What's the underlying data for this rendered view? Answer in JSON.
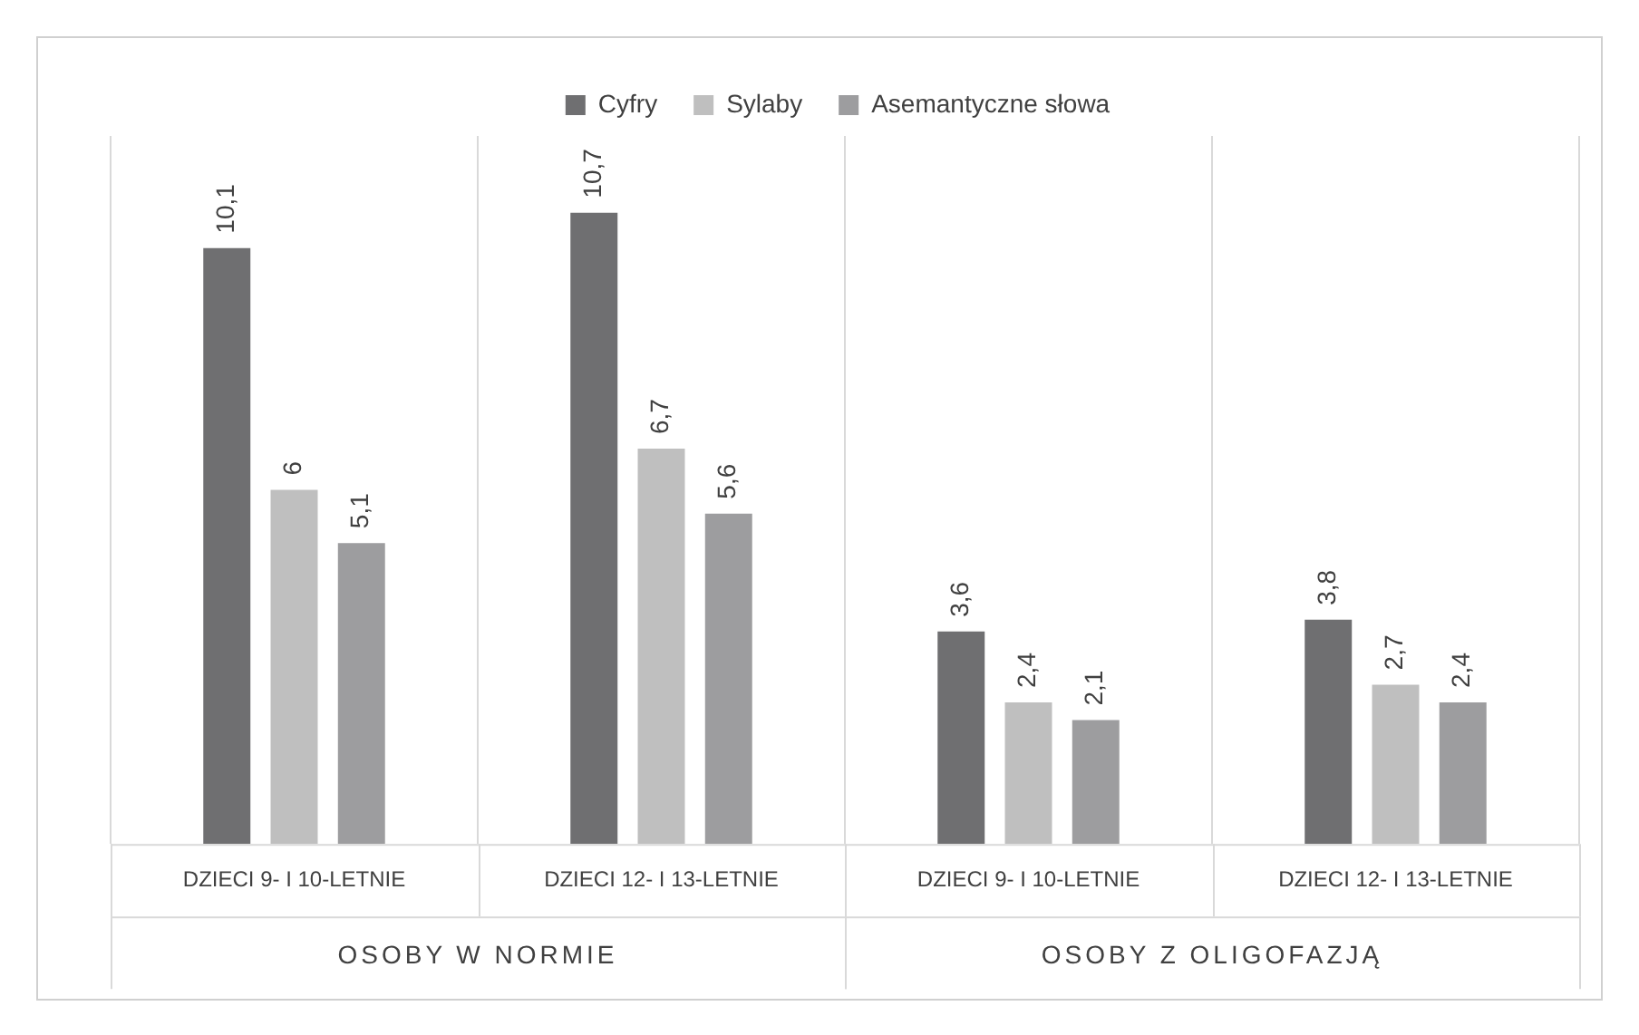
{
  "chart_data": {
    "type": "bar",
    "categories": [
      "DZIECI 9- I 10-LETNIE",
      "DZIECI 12- I 13-LETNIE",
      "DZIECI 9- I 10-LETNIE",
      "DZIECI 12- I 13-LETNIE"
    ],
    "series": [
      {
        "name": "Cyfry",
        "color": "#6f6f71",
        "values": [
          10.1,
          10.7,
          3.6,
          3.8
        ],
        "value_labels": [
          "10,1",
          "10,7",
          "3,6",
          "3,8"
        ]
      },
      {
        "name": "Sylaby",
        "color": "#bfbfbf",
        "values": [
          6,
          6.7,
          2.4,
          2.7
        ],
        "value_labels": [
          "6",
          "6,7",
          "2,4",
          "2,7"
        ]
      },
      {
        "name": "Asemantyczne słowa",
        "color": "#9d9d9f",
        "values": [
          5.1,
          5.6,
          2.1,
          2.4
        ],
        "value_labels": [
          "5,1",
          "5,6",
          "2,1",
          "2,4"
        ]
      }
    ],
    "annotations": [
      "OSOBY W NORMIE",
      "OSOBY Z OLIGOFAZJĄ"
    ],
    "grid": "x",
    "legend": "top"
  }
}
